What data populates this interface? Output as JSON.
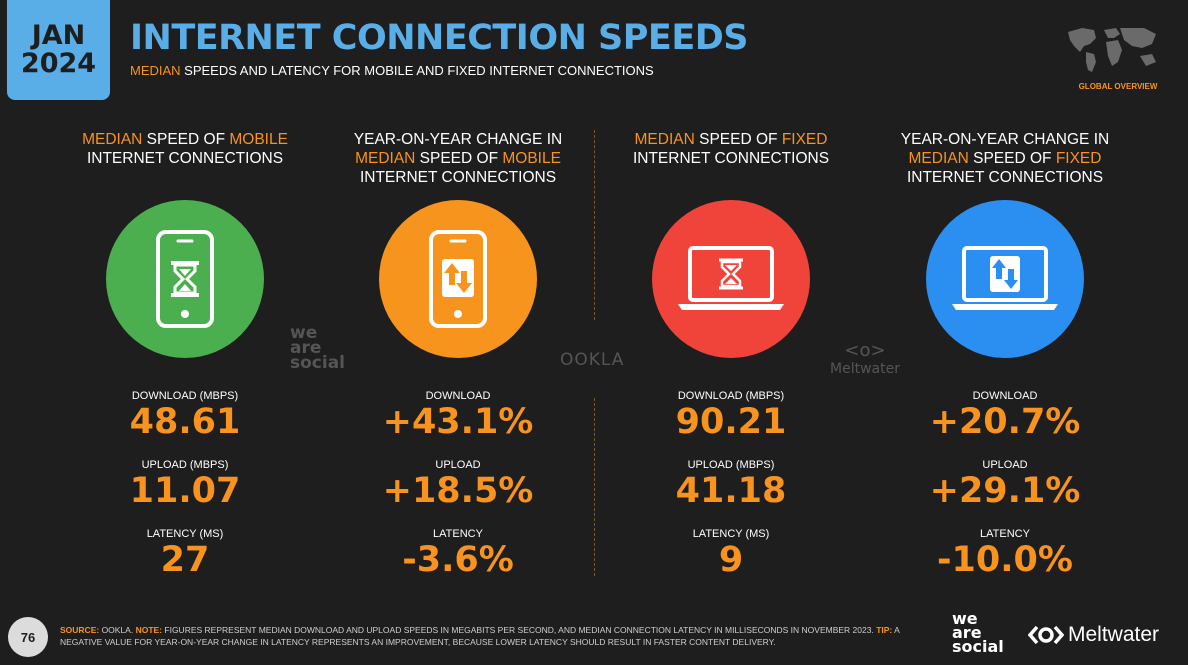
{
  "badge": {
    "month": "JAN",
    "year": "2024"
  },
  "header": {
    "title": "INTERNET CONNECTION SPEEDS",
    "subtitle_highlight": "MEDIAN",
    "subtitle_rest": " SPEEDS AND LATENCY FOR MOBILE AND FIXED INTERNET CONNECTIONS",
    "section_label": "GLOBAL OVERVIEW"
  },
  "colors": {
    "accent_blue": "#5aaee8",
    "accent_orange": "#f7931e",
    "green": "#4caf4f",
    "orange": "#f7941d",
    "red": "#f0433a",
    "blue": "#2a8ff0"
  },
  "columns": [
    {
      "heading": [
        [
          "MEDIAN",
          true
        ],
        [
          " SPEED OF ",
          false
        ],
        [
          "MOBILE",
          true
        ],
        [
          " INTERNET CONNECTIONS",
          false
        ]
      ],
      "icon": "phone-hourglass-icon",
      "metrics": [
        {
          "label": "DOWNLOAD (MBPS)",
          "value": "48.61"
        },
        {
          "label": "UPLOAD (MBPS)",
          "value": "11.07"
        },
        {
          "label": "LATENCY (MS)",
          "value": "27"
        }
      ]
    },
    {
      "heading": [
        [
          "YEAR-ON-YEAR CHANGE IN ",
          false
        ],
        [
          "MEDIAN",
          true
        ],
        [
          " SPEED OF ",
          false
        ],
        [
          "MOBILE",
          true
        ],
        [
          " INTERNET CONNECTIONS",
          false
        ]
      ],
      "icon": "phone-arrows-icon",
      "metrics": [
        {
          "label": "DOWNLOAD",
          "value": "+43.1%"
        },
        {
          "label": "UPLOAD",
          "value": "+18.5%"
        },
        {
          "label": "LATENCY",
          "value": "-3.6%"
        }
      ]
    },
    {
      "heading": [
        [
          "MEDIAN",
          true
        ],
        [
          " SPEED OF ",
          false
        ],
        [
          "FIXED",
          true
        ],
        [
          " INTERNET CONNECTIONS",
          false
        ]
      ],
      "icon": "laptop-hourglass-icon",
      "metrics": [
        {
          "label": "DOWNLOAD (MBPS)",
          "value": "90.21"
        },
        {
          "label": "UPLOAD (MBPS)",
          "value": "41.18"
        },
        {
          "label": "LATENCY (MS)",
          "value": "9"
        }
      ]
    },
    {
      "heading": [
        [
          "YEAR-ON-YEAR CHANGE IN ",
          false
        ],
        [
          "MEDIAN",
          true
        ],
        [
          " SPEED OF ",
          false
        ],
        [
          "FIXED",
          true
        ],
        [
          " INTERNET CONNECTIONS",
          false
        ]
      ],
      "icon": "laptop-arrows-icon",
      "metrics": [
        {
          "label": "DOWNLOAD",
          "value": "+20.7%"
        },
        {
          "label": "UPLOAD",
          "value": "+29.1%"
        },
        {
          "label": "LATENCY",
          "value": "-10.0%"
        }
      ]
    }
  ],
  "watermarks": {
    "wearesocial": [
      "we",
      "are",
      "social"
    ],
    "ookla": "OOKLA",
    "meltwater": "Meltwater"
  },
  "footer": {
    "page_number": "76",
    "source_label": "SOURCE:",
    "source_text": " OOKLA. ",
    "note_label": "NOTE:",
    "note_text": " FIGURES REPRESENT MEDIAN DOWNLOAD AND UPLOAD SPEEDS IN MEGABITS PER SECOND, AND MEDIAN CONNECTION LATENCY IN MILLISECONDS IN NOVEMBER 2023. ",
    "tip_label": "TIP:",
    "tip_text": " A NEGATIVE VALUE FOR YEAR-ON-YEAR CHANGE IN LATENCY REPRESENTS AN IMPROVEMENT, BECAUSE LOWER LATENCY SHOULD RESULT IN FASTER CONTENT DELIVERY.",
    "logo_wearesocial": [
      "we",
      "are",
      "social"
    ],
    "logo_meltwater": "Meltwater"
  }
}
